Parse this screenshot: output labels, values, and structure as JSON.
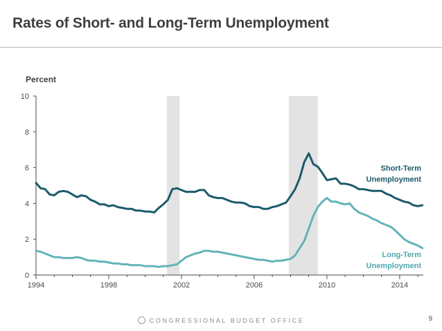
{
  "slide": {
    "title": "Rates of Short- and Long-Term Unemployment",
    "footer_text": "CONGRESSIONAL BUDGET OFFICE",
    "page_number": "9"
  },
  "chart_data": {
    "type": "line",
    "title": "",
    "ylabel": "Percent",
    "xlabel": "",
    "xlim": [
      1994,
      2015.3
    ],
    "ylim": [
      0,
      10
    ],
    "xticks": [
      1994,
      1998,
      2002,
      2006,
      2010,
      2014
    ],
    "yticks": [
      0,
      2,
      4,
      6,
      8,
      10
    ],
    "recessions": [
      [
        2001.2,
        2001.9
      ],
      [
        2007.9,
        2009.5
      ]
    ],
    "series": [
      {
        "name": "Short-Term Unemployment",
        "color": "#1b5a6b",
        "x": [
          1994.0,
          1994.25,
          1994.5,
          1994.75,
          1995.0,
          1995.25,
          1995.5,
          1995.75,
          1996.0,
          1996.25,
          1996.5,
          1996.75,
          1997.0,
          1997.25,
          1997.5,
          1997.75,
          1998.0,
          1998.25,
          1998.5,
          1998.75,
          1999.0,
          1999.25,
          1999.5,
          1999.75,
          2000.0,
          2000.25,
          2000.5,
          2000.75,
          2001.0,
          2001.25,
          2001.5,
          2001.75,
          2002.0,
          2002.25,
          2002.5,
          2002.75,
          2003.0,
          2003.25,
          2003.5,
          2003.75,
          2004.0,
          2004.25,
          2004.5,
          2004.75,
          2005.0,
          2005.25,
          2005.5,
          2005.75,
          2006.0,
          2006.25,
          2006.5,
          2006.75,
          2007.0,
          2007.25,
          2007.5,
          2007.75,
          2008.0,
          2008.25,
          2008.5,
          2008.75,
          2009.0,
          2009.25,
          2009.5,
          2009.75,
          2010.0,
          2010.25,
          2010.5,
          2010.75,
          2011.0,
          2011.25,
          2011.5,
          2011.75,
          2012.0,
          2012.25,
          2012.5,
          2012.75,
          2013.0,
          2013.25,
          2013.5,
          2013.75,
          2014.0,
          2014.25,
          2014.5,
          2014.75,
          2015.0,
          2015.25
        ],
        "values": [
          5.15,
          4.85,
          4.8,
          4.5,
          4.45,
          4.65,
          4.7,
          4.65,
          4.5,
          4.35,
          4.45,
          4.4,
          4.2,
          4.1,
          3.95,
          3.95,
          3.85,
          3.9,
          3.8,
          3.75,
          3.7,
          3.7,
          3.6,
          3.6,
          3.55,
          3.55,
          3.5,
          3.75,
          3.95,
          4.2,
          4.8,
          4.85,
          4.75,
          4.65,
          4.65,
          4.65,
          4.75,
          4.75,
          4.45,
          4.35,
          4.3,
          4.3,
          4.2,
          4.1,
          4.05,
          4.05,
          4.0,
          3.85,
          3.8,
          3.8,
          3.7,
          3.7,
          3.8,
          3.85,
          3.95,
          4.05,
          4.4,
          4.8,
          5.4,
          6.3,
          6.8,
          6.2,
          6.05,
          5.7,
          5.3,
          5.35,
          5.4,
          5.1,
          5.1,
          5.05,
          4.95,
          4.8,
          4.8,
          4.75,
          4.7,
          4.7,
          4.7,
          4.55,
          4.45,
          4.3,
          4.2,
          4.1,
          4.05,
          3.9,
          3.85,
          3.9
        ]
      },
      {
        "name": "Long-Term Unemployment",
        "color": "#62b3b8",
        "x": [
          1994.0,
          1994.25,
          1994.5,
          1994.75,
          1995.0,
          1995.25,
          1995.5,
          1995.75,
          1996.0,
          1996.25,
          1996.5,
          1996.75,
          1997.0,
          1997.25,
          1997.5,
          1997.75,
          1998.0,
          1998.25,
          1998.5,
          1998.75,
          1999.0,
          1999.25,
          1999.5,
          1999.75,
          2000.0,
          2000.25,
          2000.5,
          2000.75,
          2001.0,
          2001.25,
          2001.5,
          2001.75,
          2002.0,
          2002.25,
          2002.5,
          2002.75,
          2003.0,
          2003.25,
          2003.5,
          2003.75,
          2004.0,
          2004.25,
          2004.5,
          2004.75,
          2005.0,
          2005.25,
          2005.5,
          2005.75,
          2006.0,
          2006.25,
          2006.5,
          2006.75,
          2007.0,
          2007.25,
          2007.5,
          2007.75,
          2008.0,
          2008.25,
          2008.5,
          2008.75,
          2009.0,
          2009.25,
          2009.5,
          2009.75,
          2010.0,
          2010.25,
          2010.5,
          2010.75,
          2011.0,
          2011.25,
          2011.5,
          2011.75,
          2012.0,
          2012.25,
          2012.5,
          2012.75,
          2013.0,
          2013.25,
          2013.5,
          2013.75,
          2014.0,
          2014.25,
          2014.5,
          2014.75,
          2015.0,
          2015.25
        ],
        "values": [
          1.35,
          1.3,
          1.2,
          1.1,
          1.0,
          1.0,
          0.95,
          0.95,
          0.95,
          1.0,
          0.95,
          0.85,
          0.8,
          0.8,
          0.75,
          0.75,
          0.7,
          0.65,
          0.65,
          0.6,
          0.6,
          0.55,
          0.55,
          0.55,
          0.5,
          0.5,
          0.5,
          0.45,
          0.5,
          0.5,
          0.55,
          0.6,
          0.8,
          1.0,
          1.1,
          1.2,
          1.25,
          1.35,
          1.35,
          1.3,
          1.3,
          1.25,
          1.2,
          1.15,
          1.1,
          1.05,
          1.0,
          0.95,
          0.9,
          0.85,
          0.85,
          0.8,
          0.75,
          0.8,
          0.8,
          0.85,
          0.9,
          1.1,
          1.5,
          1.9,
          2.6,
          3.3,
          3.8,
          4.1,
          4.3,
          4.1,
          4.1,
          4.0,
          3.95,
          4.0,
          3.7,
          3.5,
          3.4,
          3.3,
          3.15,
          3.05,
          2.9,
          2.8,
          2.7,
          2.5,
          2.25,
          2.0,
          1.85,
          1.75,
          1.65,
          1.5
        ]
      }
    ],
    "grid": false,
    "legend_placement": "inline-right"
  }
}
